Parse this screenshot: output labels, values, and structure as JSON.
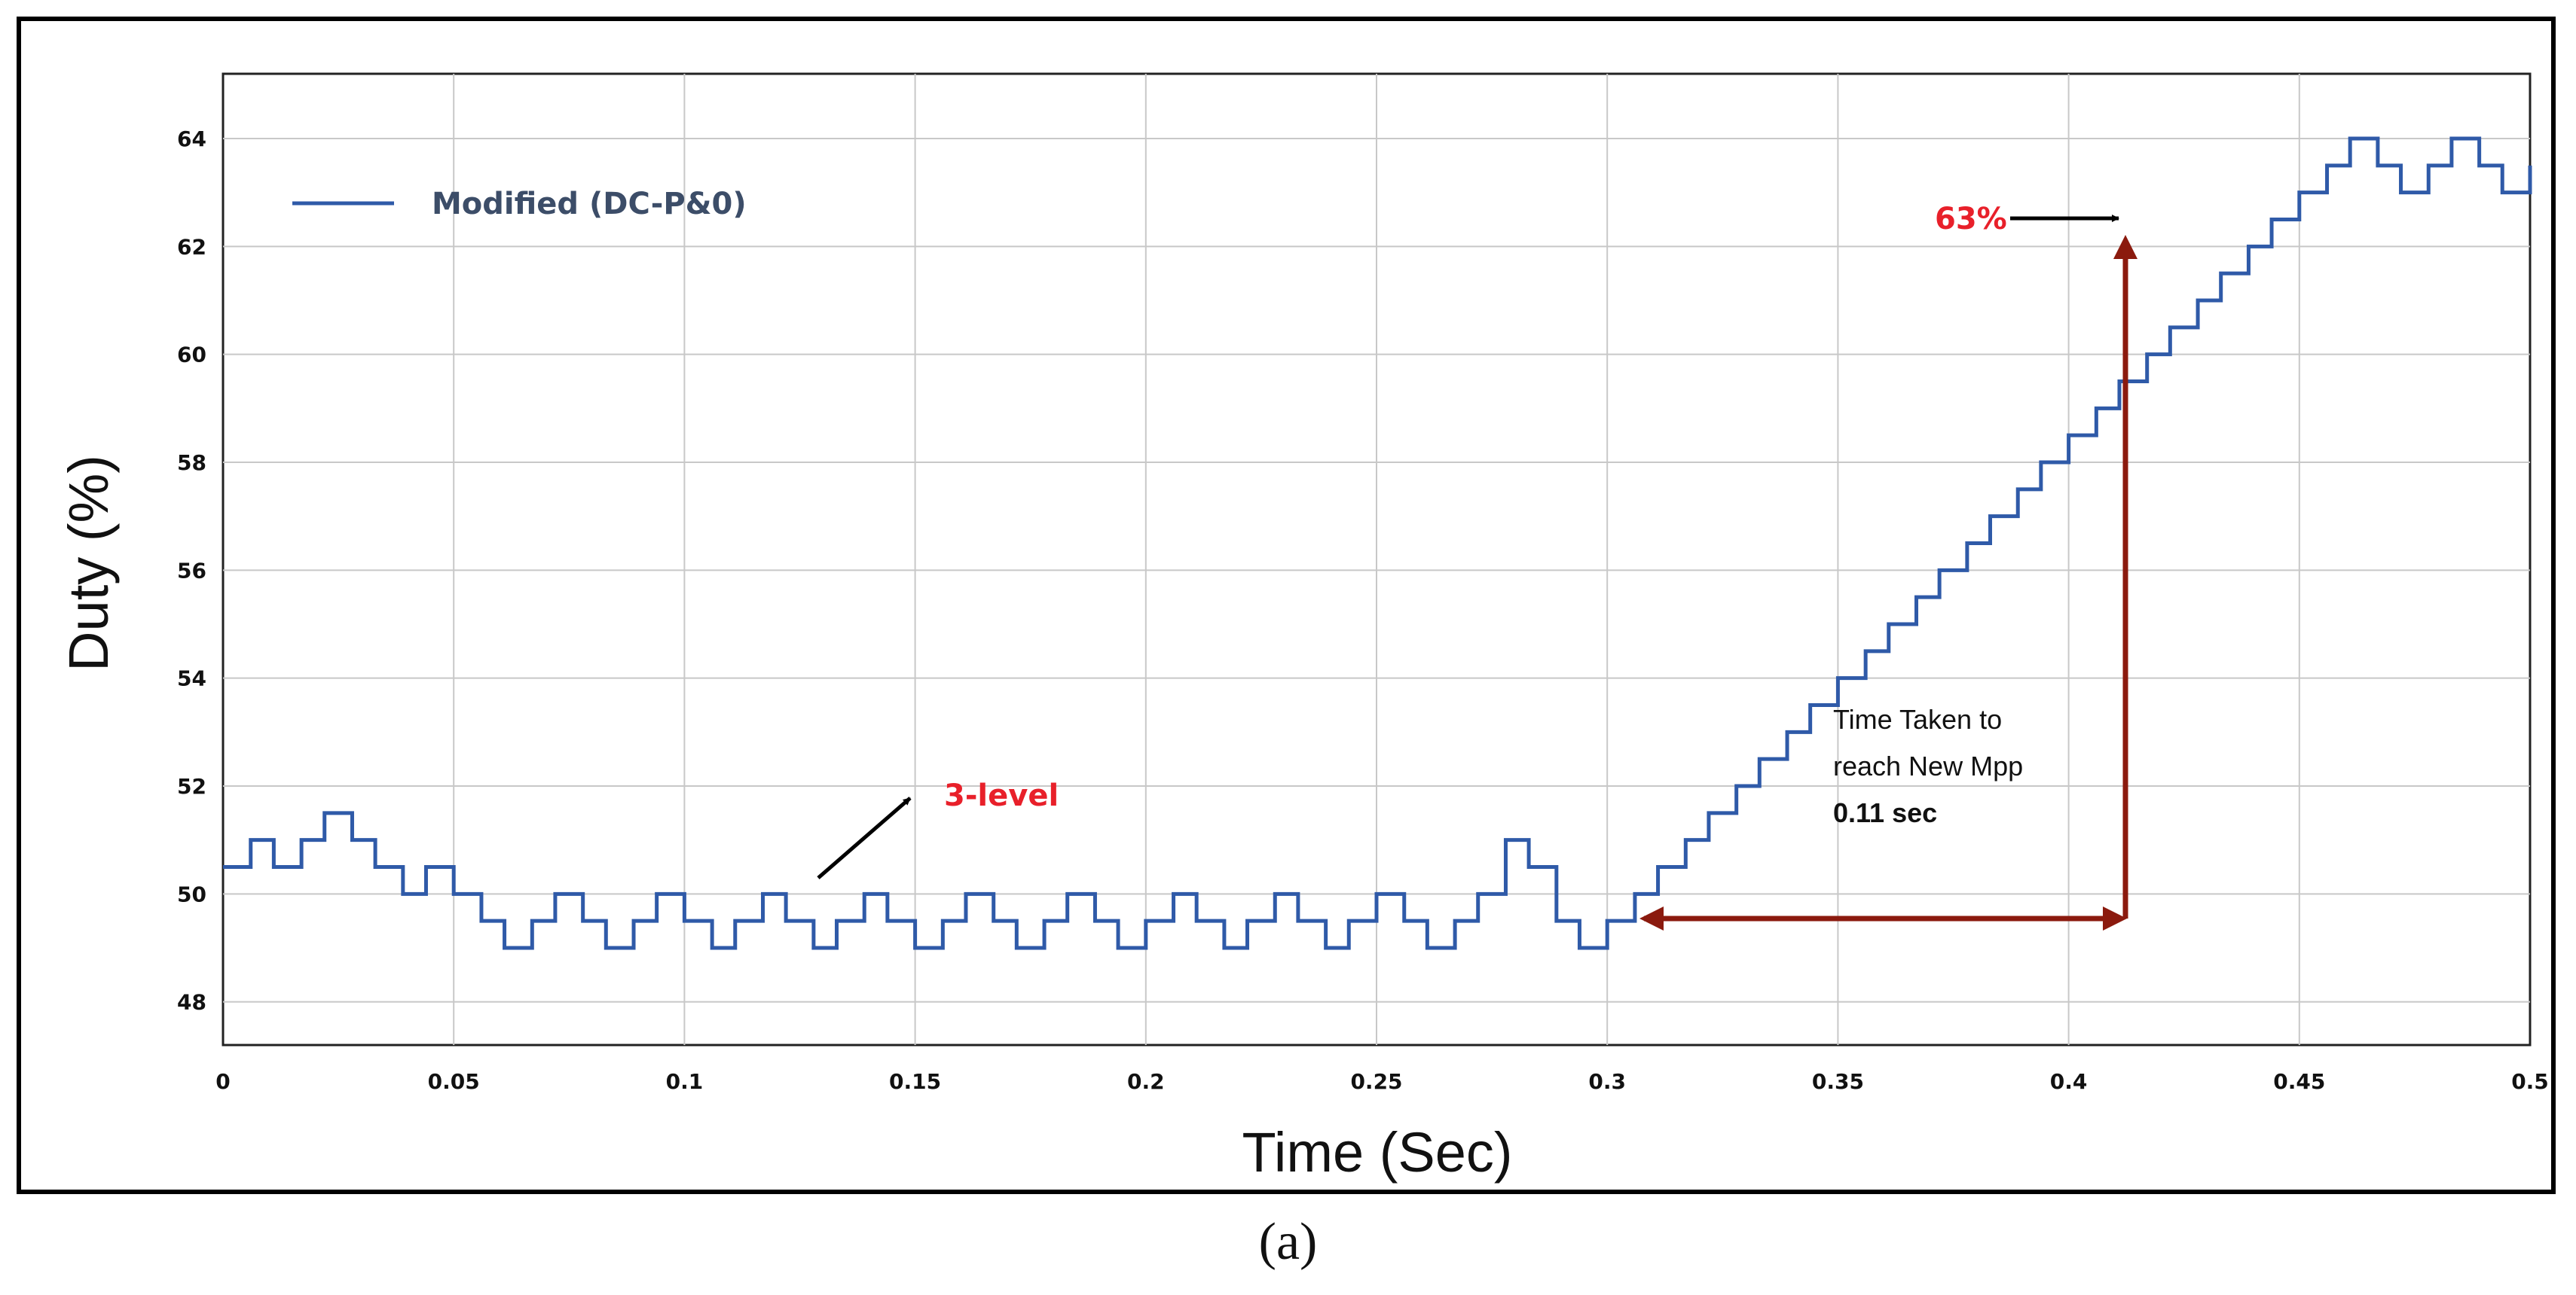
{
  "caption": "(a)",
  "chart_data": {
    "type": "line",
    "xlabel": "Time (Sec)",
    "ylabel": "Duty (%)",
    "xlim": [
      0,
      0.5
    ],
    "ylim": [
      47.2,
      65.2
    ],
    "x_ticks": [
      "0",
      "0.05",
      "0.1",
      "0.15",
      "0.2",
      "0.25",
      "0.3",
      "0.35",
      "0.4",
      "0.45",
      "0.5"
    ],
    "y_ticks": [
      "48",
      "50",
      "52",
      "54",
      "56",
      "58",
      "60",
      "62",
      "64"
    ],
    "grid": true,
    "legend_position": "top-left",
    "series": [
      {
        "name": "Modified (DC-P&0)",
        "color": "#2f5aa8",
        "step": true,
        "x": [
          0,
          0.006,
          0.011,
          0.017,
          0.022,
          0.028,
          0.033,
          0.039,
          0.044,
          0.05,
          0.056,
          0.061,
          0.067,
          0.072,
          0.078,
          0.083,
          0.089,
          0.094,
          0.1,
          0.106,
          0.111,
          0.117,
          0.122,
          0.128,
          0.133,
          0.139,
          0.144,
          0.15,
          0.156,
          0.161,
          0.167,
          0.172,
          0.178,
          0.183,
          0.189,
          0.194,
          0.2,
          0.206,
          0.211,
          0.217,
          0.222,
          0.228,
          0.233,
          0.239,
          0.244,
          0.25,
          0.256,
          0.261,
          0.267,
          0.272,
          0.278,
          0.283,
          0.289,
          0.294,
          0.3,
          0.306,
          0.311,
          0.317,
          0.322,
          0.328,
          0.333,
          0.339,
          0.344,
          0.35,
          0.356,
          0.361,
          0.367,
          0.372,
          0.378,
          0.383,
          0.389,
          0.394,
          0.4,
          0.406,
          0.411,
          0.417,
          0.422,
          0.428,
          0.433,
          0.439,
          0.444,
          0.45,
          0.456,
          0.461,
          0.467,
          0.472,
          0.478,
          0.483,
          0.489,
          0.494,
          0.5
        ],
        "y": [
          50.5,
          51,
          50.5,
          51,
          51.5,
          51,
          50.5,
          50,
          50.5,
          50,
          49.5,
          49,
          49.5,
          50,
          49.5,
          49,
          49.5,
          50,
          49.5,
          49,
          49.5,
          50,
          49.5,
          49,
          49.5,
          50,
          49.5,
          49,
          49.5,
          50,
          49.5,
          49,
          49.5,
          50,
          49.5,
          49,
          49.5,
          50,
          49.5,
          49,
          49.5,
          50,
          49.5,
          49,
          49.5,
          50,
          49.5,
          49,
          49.5,
          50,
          51,
          50.5,
          49.5,
          49,
          49.5,
          50,
          50.5,
          51,
          51.5,
          52,
          52.5,
          53,
          53.5,
          54,
          54.5,
          55,
          55.5,
          56,
          56.5,
          57,
          57.5,
          58,
          58.5,
          59,
          59.5,
          60,
          60.5,
          61,
          61.5,
          62,
          62.5,
          63,
          63.5,
          64,
          63.5,
          63,
          63.5,
          64,
          63.5,
          63,
          63.5
        ]
      }
    ],
    "annotations": {
      "three_level": "3-level",
      "time_taken_line1": "Time Taken to",
      "time_taken_line2": "reach New Mpp",
      "time_taken_value": "0.11 sec",
      "target_label": "63%"
    },
    "annotation_color": "#8b1a0e"
  }
}
